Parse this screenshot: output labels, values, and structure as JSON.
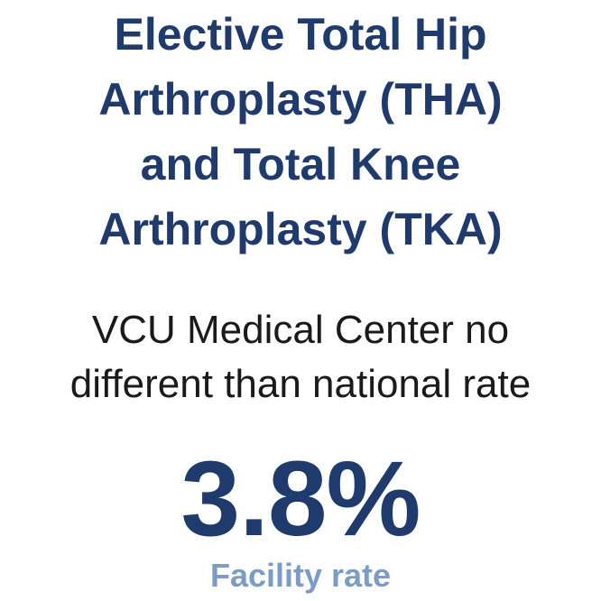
{
  "title_lines": [
    "Elective Total Hip",
    "Arthroplasty (THA)",
    "and Total Knee",
    "Arthroplasty (TKA)"
  ],
  "comparison_lines": [
    "VCU Medical Center no",
    "different than national rate"
  ],
  "rate": {
    "value": "3.8%",
    "label": "Facility rate"
  },
  "colors": {
    "title": "#1f3a6d",
    "body": "#1a1a1a",
    "value": "#1f3a6d",
    "label": "#7a9cc6"
  }
}
